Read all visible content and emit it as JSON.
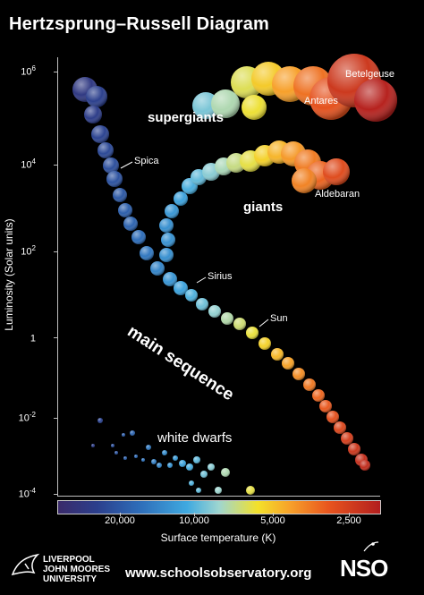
{
  "title": "Hertzsprung–Russell Diagram",
  "y_axis": {
    "label": "Luminosity (Solar units)",
    "ticks": [
      {
        "base": "10",
        "exp": "6"
      },
      {
        "base": "10",
        "exp": "4"
      },
      {
        "base": "10",
        "exp": "2"
      },
      {
        "base": "1",
        "exp": ""
      },
      {
        "base": "10",
        "exp": "-2"
      },
      {
        "base": "10",
        "exp": "-4"
      }
    ]
  },
  "x_axis": {
    "label": "Surface temperature (K)",
    "ticks": [
      "20,000",
      "10,000",
      "5,000",
      "2,500"
    ]
  },
  "regions": {
    "supergiants": "supergiants",
    "giants": "giants",
    "main_sequence": "main sequence",
    "white_dwarfs": "white dwarfs"
  },
  "star_labels": {
    "betelgeuse": "Betelgeuse",
    "antares": "Antares",
    "aldebaran": "Aldebaran",
    "spica": "Spica",
    "sirius": "Sirius",
    "sun": "Sun"
  },
  "footer": {
    "url": "www.schoolsobservatory.org",
    "ljmu_line1": "LIVERPOOL",
    "ljmu_line2": "JOHN MOORES",
    "ljmu_line3": "UNIVERSITY",
    "nso": "NSO"
  },
  "colors": {
    "background": "#000000",
    "hot": "#2c3f8c",
    "mid": "#f3e12a",
    "cool": "#b21e1e"
  }
}
